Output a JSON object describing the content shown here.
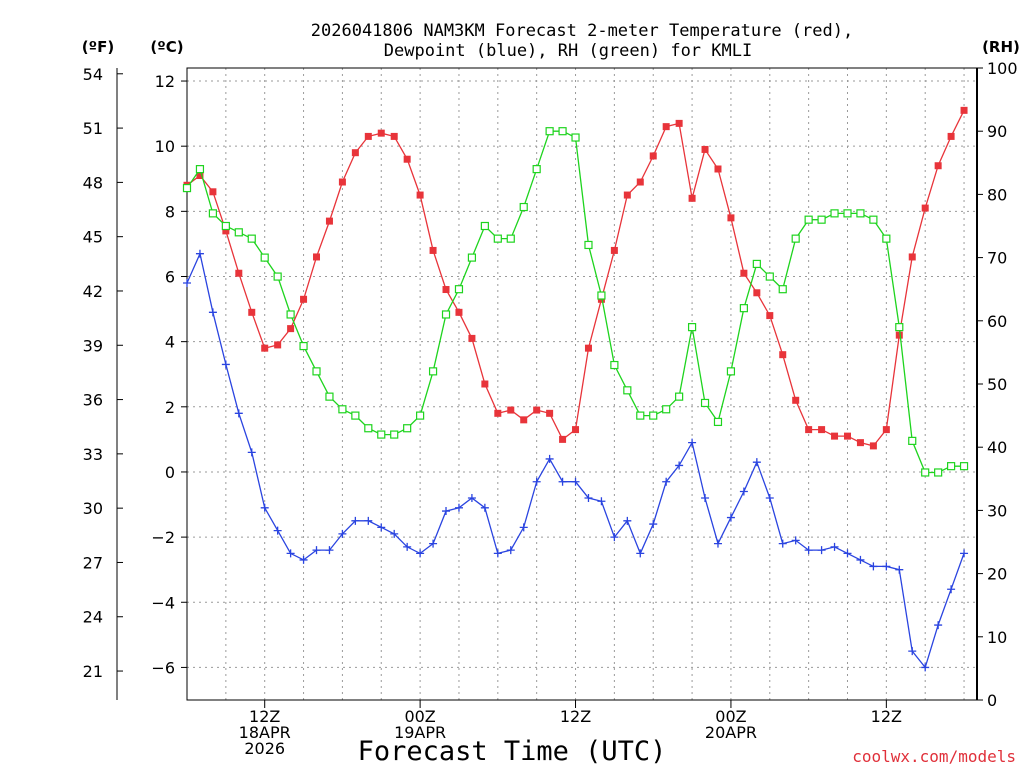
{
  "chart_data": {
    "type": "line",
    "title_line1": "2026041806 NAM3KM Forecast 2-meter Temperature (red),",
    "title_line2": "Dewpoint (blue), RH (green) for KMLI",
    "units": {
      "fahrenheit": "(ºF)",
      "celsius": "(ºC)",
      "rh": "(RH)"
    },
    "xlabel": "Forecast Time (UTC)",
    "credit": "coolwx.com/models",
    "hours_range": [
      0,
      61
    ],
    "celsius_range": [
      -7.0,
      12.4
    ],
    "rh_range": [
      0,
      100
    ],
    "celsius_ticks": [
      "12",
      "10",
      "8",
      "6",
      "4",
      "2",
      "0",
      "−2",
      "−4",
      "−6"
    ],
    "celsius_tick_values": [
      12,
      10,
      8,
      6,
      4,
      2,
      0,
      -2,
      -4,
      -6
    ],
    "fahrenheit_ticks": [
      "54",
      "51",
      "48",
      "45",
      "42",
      "39",
      "36",
      "33",
      "30",
      "27",
      "24",
      "21"
    ],
    "fahrenheit_tick_values": [
      54,
      51,
      48,
      45,
      42,
      39,
      36,
      33,
      30,
      27,
      24,
      21
    ],
    "rh_ticks": [
      "100",
      "90",
      "80",
      "70",
      "60",
      "50",
      "40",
      "30",
      "20",
      "10",
      "0"
    ],
    "rh_tick_values": [
      100,
      90,
      80,
      70,
      60,
      50,
      40,
      30,
      20,
      10,
      0
    ],
    "x_ticks": [
      {
        "hour": 6,
        "lines": [
          "12Z",
          "18APR",
          "2026"
        ]
      },
      {
        "hour": 18,
        "lines": [
          "00Z",
          "19APR"
        ]
      },
      {
        "hour": 30,
        "lines": [
          "12Z"
        ]
      },
      {
        "hour": 42,
        "lines": [
          "00Z",
          "20APR"
        ]
      },
      {
        "hour": 54,
        "lines": [
          "12Z"
        ]
      }
    ],
    "series": [
      {
        "name": "2-meter Temperature (°C)",
        "color": "#e8343a",
        "marker": "filled-square",
        "axis": "celsius",
        "values": [
          8.8,
          9.1,
          8.6,
          7.4,
          6.1,
          4.9,
          3.8,
          3.9,
          4.4,
          5.3,
          6.6,
          7.7,
          8.9,
          9.8,
          10.3,
          10.4,
          10.3,
          9.6,
          8.5,
          6.8,
          5.6,
          4.9,
          4.1,
          2.7,
          1.8,
          1.9,
          1.6,
          1.9,
          1.8,
          1.0,
          1.3,
          3.8,
          5.3,
          6.8,
          8.5,
          8.9,
          9.7,
          10.6,
          10.7,
          8.4,
          9.9,
          9.3,
          7.8,
          6.1,
          5.5,
          4.8,
          3.6,
          2.2,
          1.3,
          1.3,
          1.1,
          1.1,
          0.9,
          0.8,
          1.3,
          4.2,
          6.6,
          8.1,
          9.4,
          10.3,
          11.1
        ]
      },
      {
        "name": "Dewpoint (°C)",
        "color": "#2a44e0",
        "marker": "plus",
        "axis": "celsius",
        "values": [
          5.8,
          6.7,
          4.9,
          3.3,
          1.8,
          0.6,
          -1.1,
          -1.8,
          -2.5,
          -2.7,
          -2.4,
          -2.4,
          -1.9,
          -1.5,
          -1.5,
          -1.7,
          -1.9,
          -2.3,
          -2.5,
          -2.2,
          -1.2,
          -1.1,
          -0.8,
          -1.1,
          -2.5,
          -2.4,
          -1.7,
          -0.3,
          0.4,
          -0.3,
          -0.3,
          -0.8,
          -0.9,
          -2.0,
          -1.5,
          -2.5,
          -1.6,
          -0.3,
          0.2,
          0.9,
          -0.8,
          -2.2,
          -1.4,
          -0.6,
          0.3,
          -0.8,
          -2.2,
          -2.1,
          -2.4,
          -2.4,
          -2.3,
          -2.5,
          -2.7,
          -2.9,
          -2.9,
          -3.0,
          -5.5,
          -6.0,
          -4.7,
          -3.6,
          -2.5
        ]
      },
      {
        "name": "Relative Humidity (%)",
        "color": "#1ed41e",
        "marker": "open-square",
        "axis": "rh",
        "values": [
          81,
          84,
          77,
          75,
          74,
          73,
          70,
          67,
          61,
          56,
          52,
          48,
          46,
          45,
          43,
          42,
          42,
          43,
          45,
          52,
          61,
          65,
          70,
          75,
          73,
          73,
          78,
          84,
          90,
          90,
          89,
          72,
          64,
          53,
          49,
          45,
          45,
          46,
          48,
          59,
          47,
          44,
          52,
          62,
          69,
          67,
          65,
          73,
          76,
          76,
          77,
          77,
          77,
          76,
          73,
          59,
          41,
          36,
          36,
          37,
          37
        ]
      }
    ]
  }
}
